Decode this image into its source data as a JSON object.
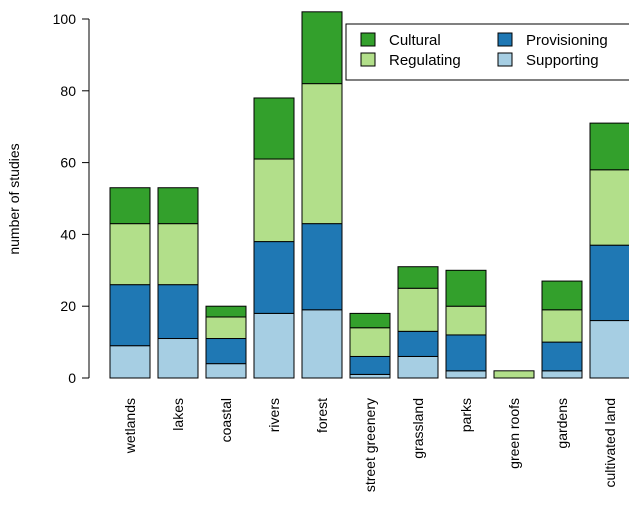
{
  "chart_data": {
    "type": "bar",
    "stacked": true,
    "categories": [
      "wetlands",
      "lakes",
      "coastal",
      "rivers",
      "forest",
      "street greenery",
      "grassland",
      "parks",
      "green roofs",
      "gardens",
      "cultivated land"
    ],
    "series": [
      {
        "name": "Supporting",
        "color": "#a6cee3",
        "values": [
          9,
          11,
          4,
          18,
          19,
          1,
          6,
          2,
          0,
          2,
          16
        ]
      },
      {
        "name": "Provisioning",
        "color": "#1f78b4",
        "values": [
          17,
          15,
          7,
          20,
          24,
          5,
          7,
          10,
          0,
          8,
          21
        ]
      },
      {
        "name": "Regulating",
        "color": "#b2df8a",
        "values": [
          17,
          17,
          6,
          23,
          39,
          8,
          12,
          8,
          2,
          9,
          21
        ]
      },
      {
        "name": "Cultural",
        "color": "#33a02c",
        "values": [
          10,
          10,
          3,
          17,
          20,
          4,
          6,
          10,
          0,
          8,
          13
        ]
      }
    ],
    "legend_order": [
      "Cultural",
      "Provisioning",
      "Regulating",
      "Supporting"
    ],
    "legend_position": "top-right",
    "ylabel": "number of studies",
    "xlabel": "",
    "yticks": [
      0,
      20,
      40,
      60,
      80,
      100
    ],
    "ylim": [
      0,
      102
    ],
    "grid": false
  }
}
